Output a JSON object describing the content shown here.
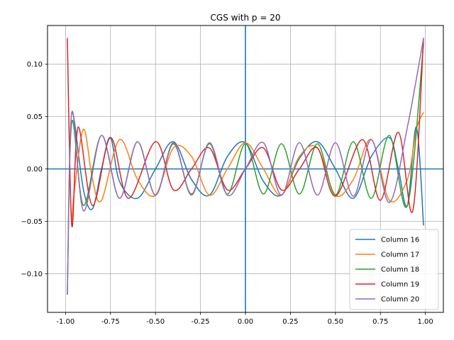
{
  "chart_data": {
    "type": "line",
    "title": "CGS with p = 20",
    "xlabel": "",
    "ylabel": "",
    "xlim": [
      -1.1,
      1.1
    ],
    "ylim": [
      -0.137,
      0.137
    ],
    "xticks": [
      "-1.00",
      "-0.75",
      "-0.50",
      "-0.25",
      "0.00",
      "0.25",
      "0.50",
      "0.75",
      "1.00"
    ],
    "xtick_values": [
      -1.0,
      -0.75,
      -0.5,
      -0.25,
      0.0,
      0.25,
      0.5,
      0.75,
      1.0
    ],
    "yticks": [
      "0.10",
      "0.05",
      "0.00",
      "−0.05",
      "−0.10"
    ],
    "ytick_values": [
      0.1,
      0.05,
      0.0,
      -0.05,
      -0.1
    ],
    "grid": true,
    "reference_lines": {
      "x": 0,
      "y": 0,
      "color": "#1f77b4"
    },
    "legend": {
      "position": "lower-right"
    },
    "series": [
      {
        "name": "Column 16",
        "color": "#1f77b4",
        "n": 16,
        "x": [
          -0.965,
          -0.95,
          -0.9,
          -0.85,
          -0.8,
          -0.75,
          -0.7,
          -0.6,
          -0.5,
          -0.4,
          -0.3,
          -0.2,
          -0.1,
          0.0,
          0.1,
          0.2,
          0.3,
          0.4,
          0.5,
          0.6,
          0.7,
          0.8,
          0.85,
          0.9,
          0.95,
          0.99
        ],
        "y": [
          0.054,
          0.045,
          -0.02,
          -0.038,
          0.0,
          0.03,
          -0.012,
          -0.028,
          0.0,
          0.026,
          -0.01,
          -0.025,
          0.012,
          0.025,
          -0.012,
          -0.025,
          0.01,
          0.026,
          0.0,
          -0.028,
          0.012,
          0.03,
          0.0,
          -0.035,
          0.04,
          -0.054
        ]
      },
      {
        "name": "Column 17",
        "color": "#ff7f0e",
        "n": 17,
        "x": [
          -0.965,
          -0.95,
          -0.9,
          -0.85,
          -0.8,
          -0.7,
          -0.6,
          -0.5,
          -0.4,
          -0.3,
          -0.2,
          -0.1,
          0.0,
          0.1,
          0.2,
          0.3,
          0.4,
          0.5,
          0.6,
          0.7,
          0.8,
          0.9,
          0.95,
          0.99
        ],
        "y": [
          -0.05,
          -0.02,
          0.038,
          -0.01,
          -0.03,
          0.028,
          -0.01,
          -0.025,
          0.02,
          0.012,
          -0.025,
          0.0,
          0.025,
          0.0,
          -0.025,
          0.012,
          0.02,
          -0.025,
          -0.01,
          0.028,
          -0.03,
          -0.01,
          0.038,
          0.054
        ]
      },
      {
        "name": "Column 18",
        "color": "#2ca02c",
        "n": 18,
        "x": [
          -0.99,
          -0.965,
          -0.9,
          -0.8,
          -0.7,
          -0.6,
          -0.5,
          -0.4,
          -0.3,
          -0.2,
          -0.1,
          0.0,
          0.1,
          0.2,
          0.3,
          0.4,
          0.5,
          0.6,
          0.7,
          0.8,
          0.9,
          0.99
        ],
        "y": [
          -0.12,
          0.045,
          -0.035,
          0.032,
          -0.028,
          0.026,
          -0.025,
          0.024,
          -0.024,
          0.024,
          -0.024,
          0.024,
          -0.024,
          0.024,
          -0.024,
          0.024,
          -0.025,
          0.026,
          -0.028,
          0.032,
          -0.035,
          0.12
        ]
      },
      {
        "name": "Column 19",
        "color": "#d62728",
        "n": 19,
        "x": [
          -0.99,
          -0.965,
          -0.93,
          -0.85,
          -0.75,
          -0.65,
          -0.5,
          -0.4,
          -0.3,
          -0.2,
          -0.1,
          0.0,
          0.1,
          0.2,
          0.3,
          0.4,
          0.5,
          0.65,
          0.75,
          0.85,
          0.93,
          0.99
        ],
        "y": [
          0.125,
          -0.054,
          0.04,
          -0.035,
          0.03,
          -0.028,
          0.026,
          -0.02,
          0.0,
          0.02,
          -0.02,
          0.0,
          0.02,
          -0.02,
          0.0,
          0.02,
          -0.026,
          0.028,
          -0.03,
          0.035,
          -0.04,
          0.125
        ]
      },
      {
        "name": "Column 20",
        "color": "#9467bd",
        "n": 20,
        "x": [
          -0.99,
          -0.965,
          -0.9,
          -0.8,
          -0.7,
          -0.6,
          -0.5,
          -0.4,
          -0.3,
          -0.2,
          -0.1,
          0.0,
          0.1,
          0.2,
          0.3,
          0.4,
          0.5,
          0.6,
          0.7,
          0.8,
          0.9,
          0.99
        ],
        "y": [
          -0.12,
          0.054,
          -0.04,
          0.032,
          -0.028,
          0.026,
          -0.025,
          0.025,
          -0.025,
          0.025,
          -0.025,
          0.0,
          0.025,
          -0.025,
          0.025,
          -0.025,
          0.025,
          -0.026,
          0.028,
          -0.032,
          0.04,
          0.125
        ]
      }
    ]
  }
}
